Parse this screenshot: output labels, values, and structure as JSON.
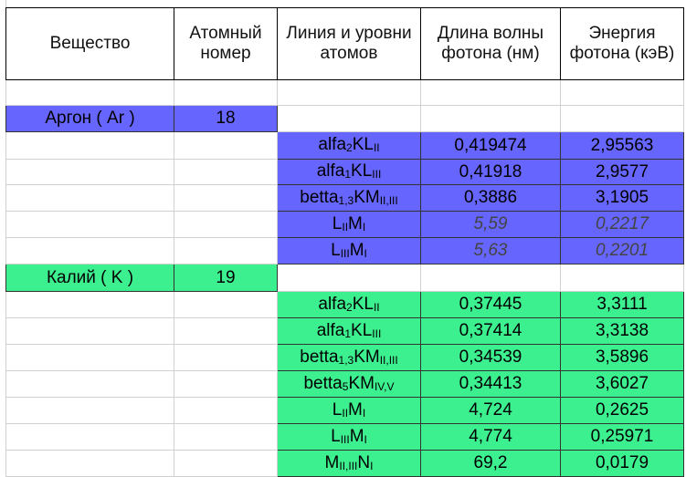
{
  "colors": {
    "argon": "#6666FF",
    "kalium": "#3DF08F",
    "italic_text": "#444444"
  },
  "headers": [
    "Вещество",
    "Атомный номер",
    "Линия и уровни атомов",
    "Длина волны фотона (нм)",
    "Энергия фотона (кэВ)"
  ],
  "elements": [
    {
      "name": "Аргон ( Ar )",
      "atomic_number": "18",
      "color_key": "argon",
      "lines": [
        {
          "label": [
            [
              "alfa",
              ""
            ],
            [
              "2",
              "sub"
            ],
            [
              "KL",
              ""
            ],
            [
              "II",
              "sub"
            ]
          ],
          "wavelength": "0,419474",
          "energy": "2,95563",
          "italic": false
        },
        {
          "label": [
            [
              "alfa",
              ""
            ],
            [
              "1",
              "sub"
            ],
            [
              "KL",
              ""
            ],
            [
              "III",
              "sub"
            ]
          ],
          "wavelength": "0,41918",
          "energy": "2,9577",
          "italic": false
        },
        {
          "label": [
            [
              "betta",
              ""
            ],
            [
              "1,3",
              "sub"
            ],
            [
              "KM",
              ""
            ],
            [
              "II,III",
              "sub"
            ]
          ],
          "wavelength": "0,3886",
          "energy": "3,1905",
          "italic": false
        },
        {
          "label": [
            [
              "L",
              ""
            ],
            [
              "II",
              "sub"
            ],
            [
              "M",
              ""
            ],
            [
              "I",
              "sub"
            ]
          ],
          "wavelength": "5,59",
          "energy": "0,2217",
          "italic": true
        },
        {
          "label": [
            [
              "L",
              ""
            ],
            [
              "III",
              "sub"
            ],
            [
              "M",
              ""
            ],
            [
              "I",
              "sub"
            ]
          ],
          "wavelength": "5,63",
          "energy": "0,2201",
          "italic": true
        }
      ]
    },
    {
      "name": "Калий ( K )",
      "atomic_number": "19",
      "color_key": "kalium",
      "lines": [
        {
          "label": [
            [
              "alfa",
              ""
            ],
            [
              "2",
              "sub"
            ],
            [
              "KL",
              ""
            ],
            [
              "II",
              "sub"
            ]
          ],
          "wavelength": "0,37445",
          "energy": "3,3111",
          "italic": false
        },
        {
          "label": [
            [
              "alfa",
              ""
            ],
            [
              "1",
              "sub"
            ],
            [
              "KL",
              ""
            ],
            [
              "III",
              "sub"
            ]
          ],
          "wavelength": "0,37414",
          "energy": "3,3138",
          "italic": false
        },
        {
          "label": [
            [
              "betta",
              ""
            ],
            [
              "1,3",
              "sub"
            ],
            [
              "KM",
              ""
            ],
            [
              "II,III",
              "sub"
            ]
          ],
          "wavelength": "0,34539",
          "energy": "3,5896",
          "italic": false
        },
        {
          "label": [
            [
              "betta",
              ""
            ],
            [
              "5",
              "sub"
            ],
            [
              "KM",
              ""
            ],
            [
              "IV,V",
              "sub"
            ]
          ],
          "wavelength": "0,34413",
          "energy": "3,6027",
          "italic": false
        },
        {
          "label": [
            [
              "L",
              ""
            ],
            [
              "II",
              "sub"
            ],
            [
              "M",
              ""
            ],
            [
              "I",
              "sub"
            ]
          ],
          "wavelength": "4,724",
          "energy": "0,2625",
          "italic": false
        },
        {
          "label": [
            [
              "L",
              ""
            ],
            [
              "III",
              "sub"
            ],
            [
              "M",
              ""
            ],
            [
              "I",
              "sub"
            ]
          ],
          "wavelength": "4,774",
          "energy": "0,25971",
          "italic": false
        },
        {
          "label": [
            [
              "M",
              ""
            ],
            [
              "II,III",
              "sub"
            ],
            [
              "N",
              ""
            ],
            [
              "I",
              "sub"
            ]
          ],
          "wavelength": "69,2",
          "energy": "0,0179",
          "italic": false
        }
      ]
    }
  ]
}
